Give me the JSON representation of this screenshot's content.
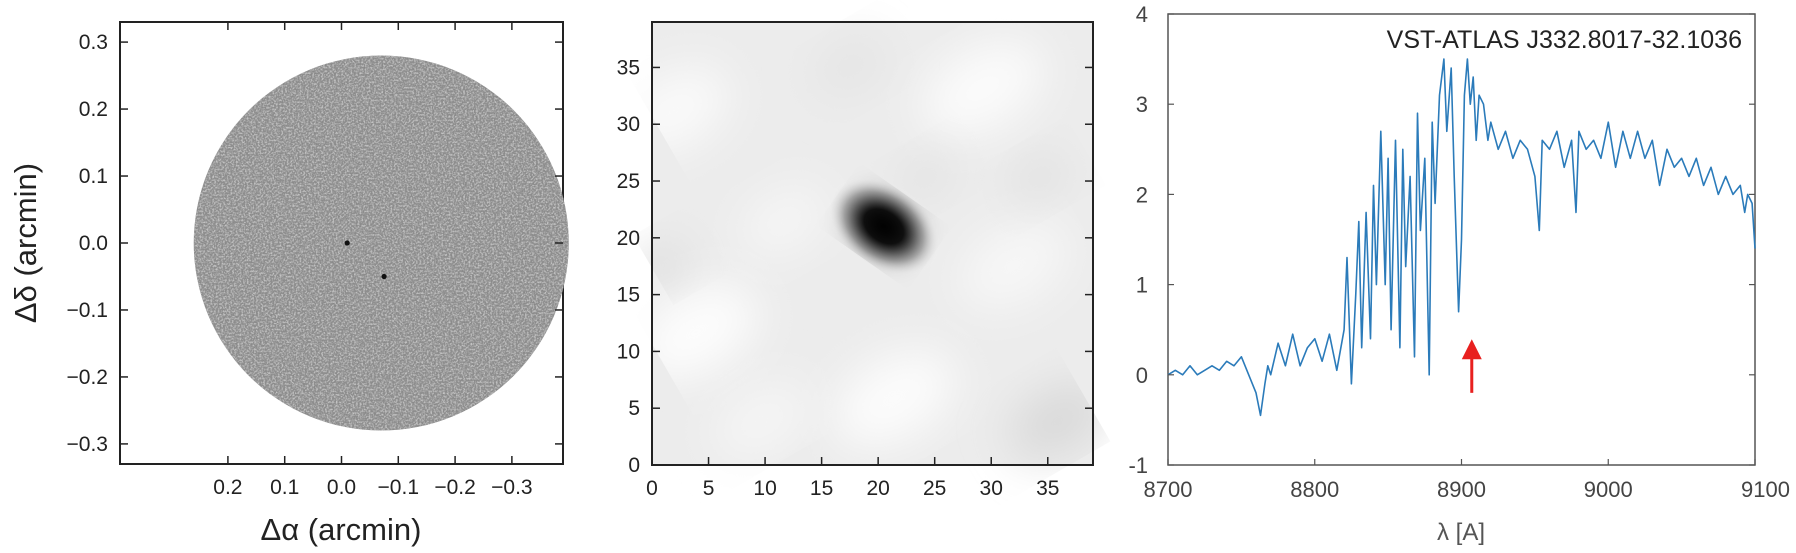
{
  "chart_data": [
    {
      "type": "heatmap",
      "panel": "dirty-map",
      "colormap": "gray",
      "xlabel": "Δα (arcmin)",
      "ylabel": "Δδ (arcmin)",
      "xlim": [
        0.39,
        -0.39
      ],
      "ylim": [
        -0.33,
        0.33
      ],
      "xticks": [
        0.2,
        0.1,
        0.0,
        -0.1,
        -0.2,
        -0.3
      ],
      "xtick_labels": [
        "0.2",
        "0.1",
        "0.0",
        "−0.1",
        "−0.2",
        "−0.3"
      ],
      "yticks": [
        0.3,
        0.2,
        0.1,
        0.0,
        -0.1,
        -0.2,
        -0.3
      ],
      "ytick_labels": [
        "0.3",
        "0.2",
        "0.1",
        "0.0",
        "−0.1",
        "−0.2",
        "−0.3"
      ],
      "field_of_view": {
        "center_x": -0.07,
        "center_y": 0.0,
        "radius": 0.28
      },
      "sources": [
        {
          "x": -0.01,
          "y": 0.0
        },
        {
          "x": -0.075,
          "y": -0.05
        }
      ],
      "grid": false
    },
    {
      "type": "heatmap",
      "panel": "beam-image",
      "colormap": "gray_r",
      "xlim": [
        0,
        39
      ],
      "ylim": [
        0,
        39
      ],
      "xticks": [
        0,
        5,
        10,
        15,
        20,
        25,
        30,
        35
      ],
      "xtick_labels": [
        "0",
        "5",
        "10",
        "15",
        "20",
        "25",
        "30",
        "35"
      ],
      "yticks": [
        0,
        5,
        10,
        15,
        20,
        25,
        30,
        35
      ],
      "ytick_labels": [
        "0",
        "5",
        "10",
        "15",
        "20",
        "25",
        "30",
        "35"
      ],
      "peak": {
        "x": 20.5,
        "y": 21.0
      },
      "grid": false
    },
    {
      "type": "line",
      "panel": "spectrum",
      "title": "VST-ATLAS J332.8017-32.1036",
      "xlabel": "λ [A]",
      "ylabel": "",
      "xlim": [
        8700,
        9100
      ],
      "ylim": [
        -1,
        4
      ],
      "xticks": [
        8700,
        8800,
        8900,
        9000,
        9100
      ],
      "xtick_labels": [
        "8700",
        "8800",
        "8900",
        "9000",
        "9100"
      ],
      "yticks": [
        4,
        3,
        2,
        1,
        0,
        -1
      ],
      "ytick_labels": [
        "4",
        "3",
        "2",
        "1",
        "0",
        "-1"
      ],
      "color": "#2b7bba",
      "x": [
        8700,
        8705,
        8710,
        8715,
        8720,
        8725,
        8730,
        8735,
        8740,
        8745,
        8750,
        8755,
        8760,
        8763,
        8766,
        8768,
        8770,
        8775,
        8780,
        8785,
        8790,
        8795,
        8800,
        8805,
        8810,
        8815,
        8820,
        8822,
        8825,
        8828,
        8830,
        8832,
        8835,
        8838,
        8840,
        8842,
        8845,
        8848,
        8850,
        8852,
        8855,
        8858,
        8860,
        8862,
        8865,
        8868,
        8870,
        8872,
        8875,
        8878,
        8880,
        8882,
        8885,
        8888,
        8890,
        8893,
        8895,
        8898,
        8900,
        8902,
        8904,
        8906,
        8908,
        8910,
        8912,
        8915,
        8918,
        8920,
        8925,
        8930,
        8935,
        8940,
        8945,
        8950,
        8953,
        8955,
        8960,
        8965,
        8970,
        8975,
        8978,
        8980,
        8985,
        8990,
        8995,
        9000,
        9005,
        9010,
        9015,
        9020,
        9025,
        9030,
        9035,
        9040,
        9045,
        9050,
        9055,
        9060,
        9065,
        9070,
        9075,
        9080,
        9085,
        9090,
        9093,
        9095,
        9098,
        9100
      ],
      "y": [
        0.0,
        0.05,
        0.0,
        0.1,
        0.0,
        0.05,
        0.1,
        0.05,
        0.15,
        0.1,
        0.2,
        0.0,
        -0.2,
        -0.45,
        -0.1,
        0.1,
        0.0,
        0.35,
        0.1,
        0.45,
        0.1,
        0.3,
        0.4,
        0.15,
        0.45,
        0.05,
        0.5,
        1.3,
        -0.1,
        0.9,
        1.7,
        0.3,
        1.8,
        0.4,
        2.1,
        1.0,
        2.7,
        1.0,
        2.4,
        0.5,
        2.6,
        0.3,
        2.5,
        1.2,
        2.2,
        0.2,
        2.9,
        1.6,
        2.4,
        0.0,
        2.8,
        1.9,
        3.1,
        3.5,
        2.7,
        3.4,
        2.2,
        0.7,
        1.5,
        3.1,
        3.5,
        3.0,
        3.3,
        2.6,
        3.1,
        3.0,
        2.6,
        2.8,
        2.5,
        2.7,
        2.4,
        2.6,
        2.5,
        2.2,
        1.6,
        2.6,
        2.5,
        2.7,
        2.3,
        2.6,
        1.8,
        2.7,
        2.5,
        2.6,
        2.4,
        2.8,
        2.3,
        2.7,
        2.4,
        2.7,
        2.4,
        2.6,
        2.1,
        2.5,
        2.3,
        2.4,
        2.2,
        2.4,
        2.1,
        2.3,
        2.0,
        2.2,
        2.0,
        2.1,
        1.8,
        2.0,
        1.9,
        1.4
      ],
      "annotations": [
        {
          "type": "arrow",
          "x": 8907,
          "y_from": -0.2,
          "y_to": 0.35,
          "color": "#e8201f"
        }
      ],
      "grid": false
    }
  ]
}
